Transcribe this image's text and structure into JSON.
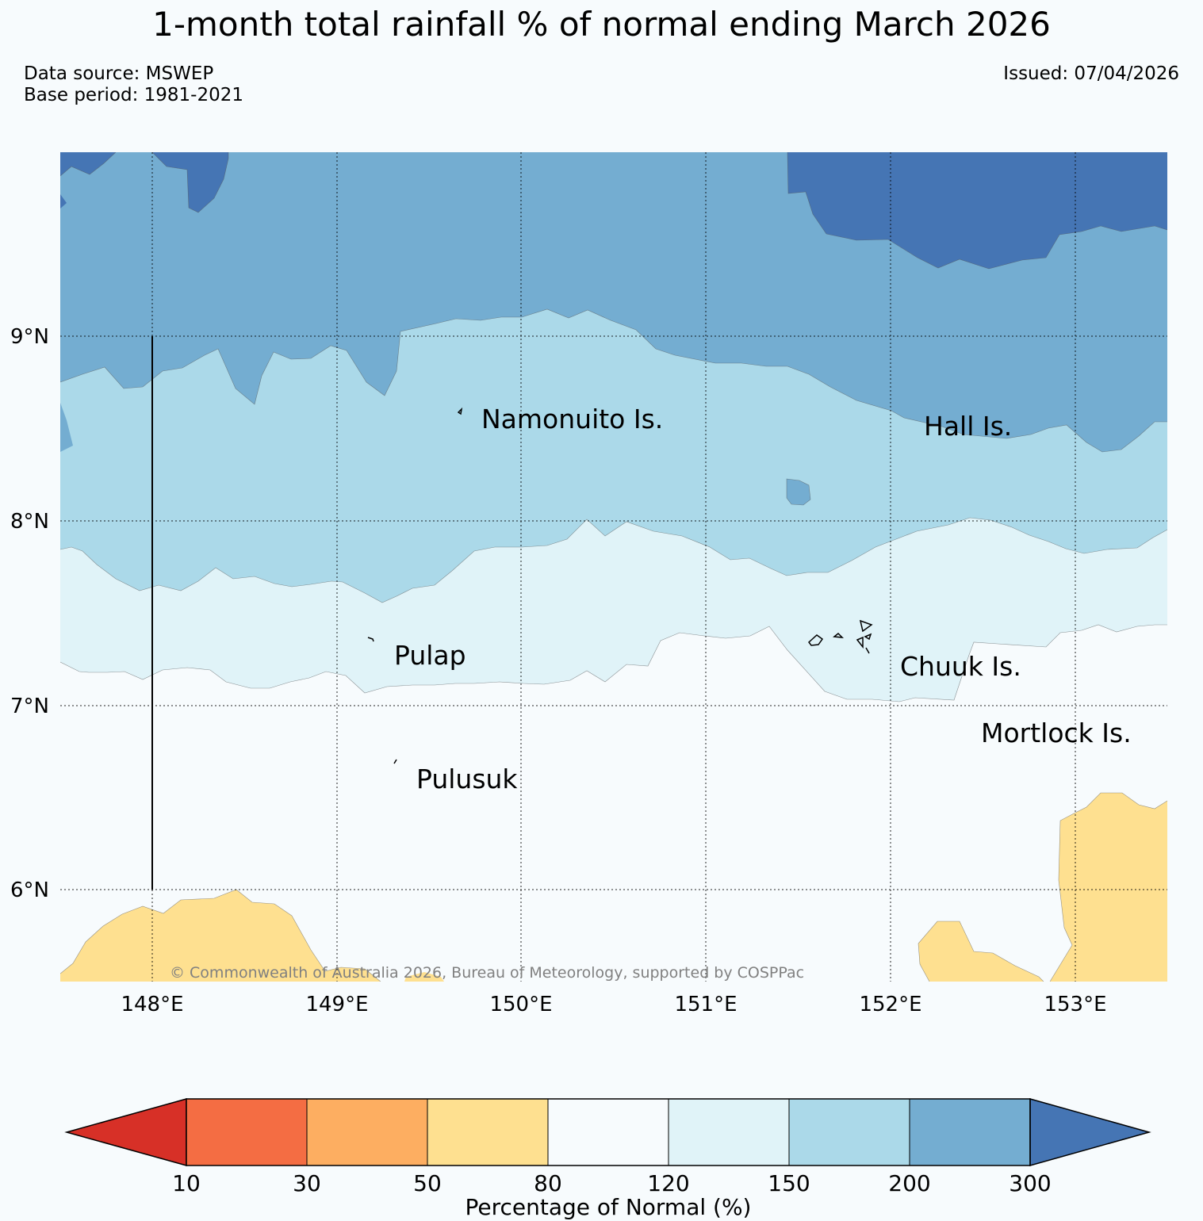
{
  "title": "1-month total rainfall % of normal ending March 2026",
  "meta": {
    "data_source": "Data source: MSWEP",
    "base_period": "Base period: 1981-2021",
    "issued": "Issued: 07/04/2026"
  },
  "map": {
    "region_extent": {
      "lon_min": 147.5,
      "lon_max": 153.5,
      "lat_min": 5.5,
      "lat_max": 10.0
    },
    "lon_ticks": [
      {
        "value": 148,
        "label": "148°E"
      },
      {
        "value": 149,
        "label": "149°E"
      },
      {
        "value": 150,
        "label": "150°E"
      },
      {
        "value": 151,
        "label": "151°E"
      },
      {
        "value": 152,
        "label": "152°E"
      },
      {
        "value": 153,
        "label": "153°E"
      }
    ],
    "lat_ticks": [
      {
        "value": 9,
        "label": "9°N"
      },
      {
        "value": 8,
        "label": "8°N"
      },
      {
        "value": 7,
        "label": "7°N"
      },
      {
        "value": 6,
        "label": "6°N"
      }
    ],
    "place_labels": {
      "namonuito": "Namonuito Is.",
      "hall": "Hall Is.",
      "pulap": "Pulap",
      "chuuk": "Chuuk Is.",
      "mortlock": "Mortlock Is.",
      "pulusuk": "Pulusuk"
    },
    "copyright": "© Commonwealth of Australia 2026, Bureau of Meteorology, supported by COSPPac"
  },
  "colors": {
    "below_10": "#d73027",
    "c10_30": "#f46d43",
    "c30_50": "#fdae61",
    "c50_80": "#fee090",
    "c80_120": "#f7fbfd",
    "c120_150": "#e0f3f8",
    "c150_200": "#abd9e9",
    "c200_300": "#74add1",
    "above_300": "#4575b4"
  },
  "colorbar": {
    "ticks": [
      "10",
      "30",
      "50",
      "80",
      "120",
      "150",
      "200",
      "300"
    ],
    "label": "Percentage of Normal (%)"
  }
}
